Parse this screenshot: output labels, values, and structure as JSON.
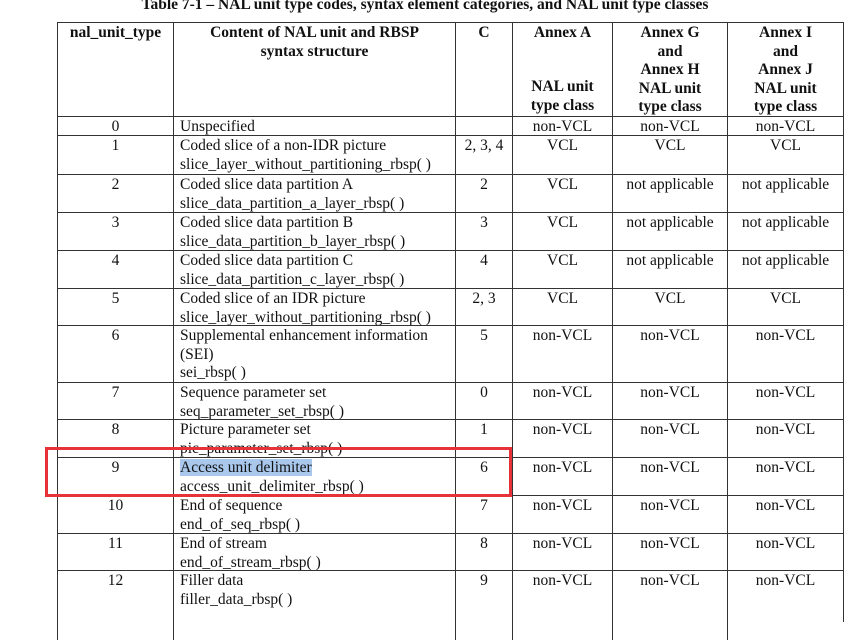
{
  "title": "Table 7-1 – NAL unit type codes, syntax element categories, and NAL unit type classes",
  "table": {
    "header": [
      {
        "top": [
          "nal_unit_type"
        ],
        "bottom": []
      },
      {
        "top": [
          "Content of NAL unit and RBSP",
          "syntax structure"
        ],
        "bottom": []
      },
      {
        "top": [
          "C"
        ],
        "bottom": []
      },
      {
        "top": [
          "Annex A"
        ],
        "bottom": [
          "NAL unit",
          "type class"
        ]
      },
      {
        "top": [
          "Annex G",
          "and",
          "Annex H"
        ],
        "bottom": [
          "NAL unit",
          "type class"
        ]
      },
      {
        "top": [
          "Annex I",
          "and",
          "Annex J"
        ],
        "bottom": [
          "NAL unit",
          "type class"
        ]
      }
    ],
    "rows": [
      [
        "0",
        [
          "Unspecified"
        ],
        "",
        "non-VCL",
        "non-VCL",
        "non-VCL"
      ],
      [
        "1",
        [
          "Coded slice of a non-IDR picture",
          "slice_layer_without_partitioning_rbsp( )"
        ],
        "2, 3, 4",
        "VCL",
        "VCL",
        "VCL"
      ],
      [
        "2",
        [
          "Coded slice data partition A",
          "slice_data_partition_a_layer_rbsp( )"
        ],
        "2",
        "VCL",
        "not applicable",
        "not applicable"
      ],
      [
        "3",
        [
          "Coded slice data partition B",
          "slice_data_partition_b_layer_rbsp( )"
        ],
        "3",
        "VCL",
        "not applicable",
        "not applicable"
      ],
      [
        "4",
        [
          "Coded slice data partition C",
          "slice_data_partition_c_layer_rbsp( )"
        ],
        "4",
        "VCL",
        "not applicable",
        "not applicable"
      ],
      [
        "5",
        [
          "Coded slice of an IDR picture",
          "slice_layer_without_partitioning_rbsp( )"
        ],
        "2, 3",
        "VCL",
        "VCL",
        "VCL"
      ],
      [
        "6",
        [
          "Supplemental enhancement information",
          "(SEI)",
          "sei_rbsp( )"
        ],
        "5",
        "non-VCL",
        "non-VCL",
        "non-VCL"
      ],
      [
        "7",
        [
          "Sequence parameter set",
          "seq_parameter_set_rbsp( )"
        ],
        "0",
        "non-VCL",
        "non-VCL",
        "non-VCL"
      ],
      [
        "8",
        [
          "Picture parameter set",
          "pic_parameter_set_rbsp( )"
        ],
        "1",
        "non-VCL",
        "non-VCL",
        "non-VCL"
      ],
      [
        "9",
        [
          "Access unit delimiter",
          "access_unit_delimiter_rbsp( )"
        ],
        "6",
        "non-VCL",
        "non-VCL",
        "non-VCL"
      ],
      [
        "10",
        [
          "End of sequence",
          "end_of_seq_rbsp( )"
        ],
        "7",
        "non-VCL",
        "non-VCL",
        "non-VCL"
      ],
      [
        "11",
        [
          "End of stream",
          "end_of_stream_rbsp( )"
        ],
        "8",
        "non-VCL",
        "non-VCL",
        "non-VCL"
      ],
      [
        "12",
        [
          "Filler data",
          "filler_data_rbsp( )"
        ],
        "9",
        "non-VCL",
        "non-VCL",
        "non-VCL"
      ]
    ]
  }
}
